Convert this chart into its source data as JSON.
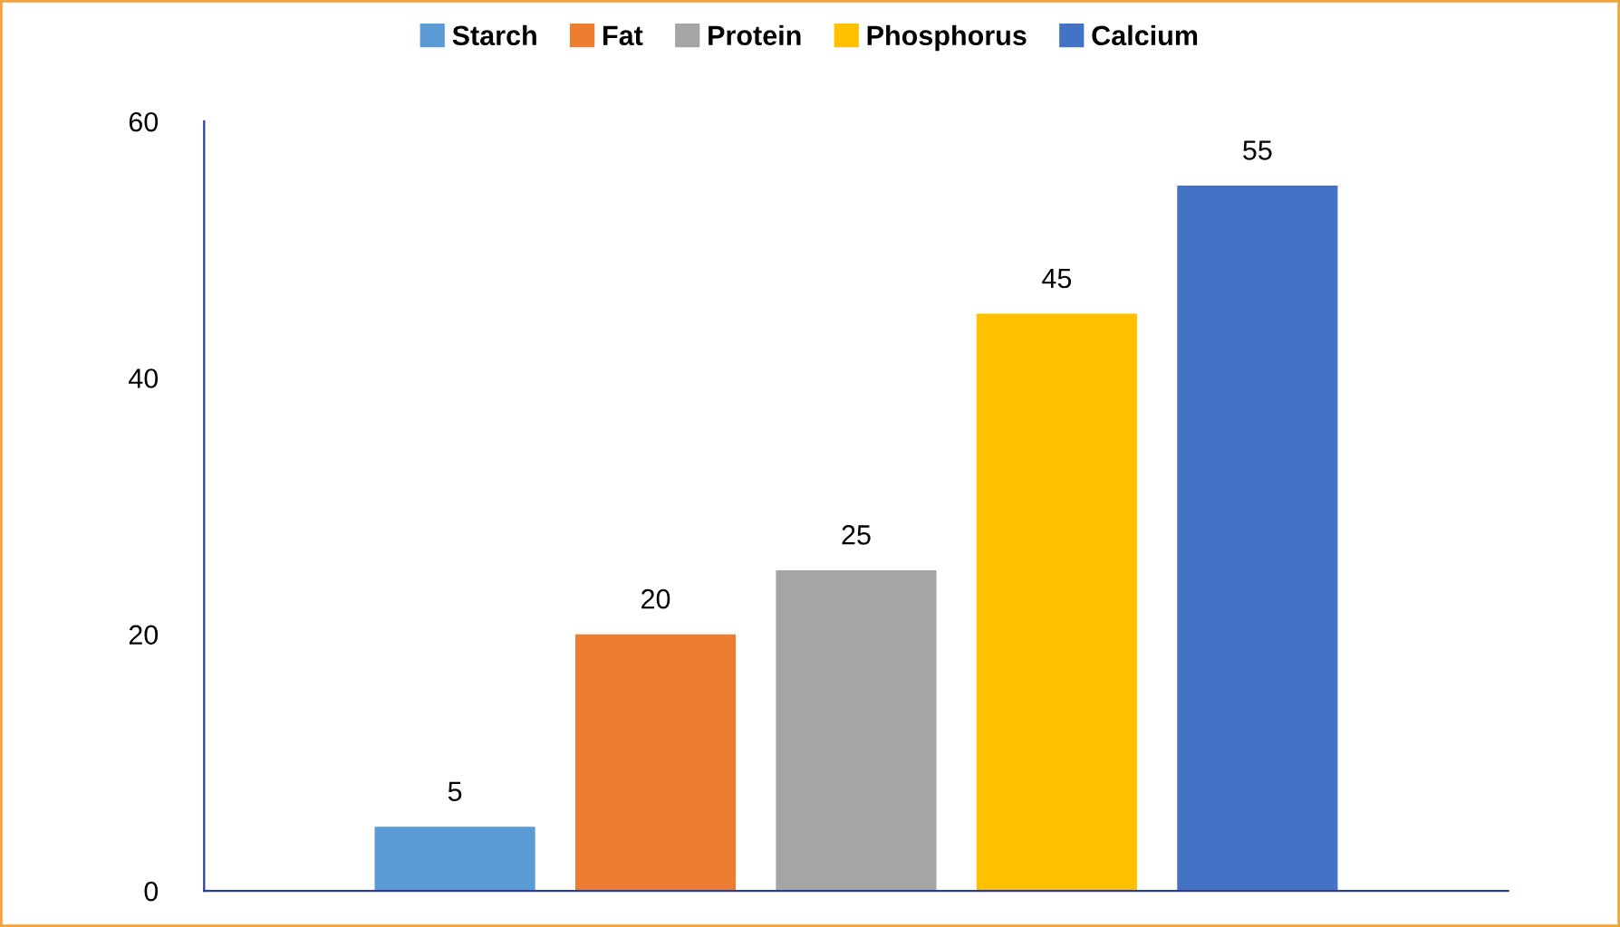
{
  "chart_data": {
    "type": "bar",
    "categories": [
      null
    ],
    "series": [
      {
        "name": "Starch",
        "color": "#5b9bd5",
        "values": [
          5
        ]
      },
      {
        "name": "Fat",
        "color": "#ed7d31",
        "values": [
          20
        ]
      },
      {
        "name": "Protein",
        "color": "#a5a5a5",
        "values": [
          25
        ]
      },
      {
        "name": "Phosphorus",
        "color": "#ffc000",
        "values": [
          45
        ]
      },
      {
        "name": "Calcium",
        "color": "#4472c4",
        "values": [
          55
        ]
      }
    ],
    "ylim": [
      0,
      60
    ],
    "yticks": [
      0,
      20,
      40,
      60
    ],
    "data_labels": true,
    "legend": "top",
    "grid": false
  }
}
